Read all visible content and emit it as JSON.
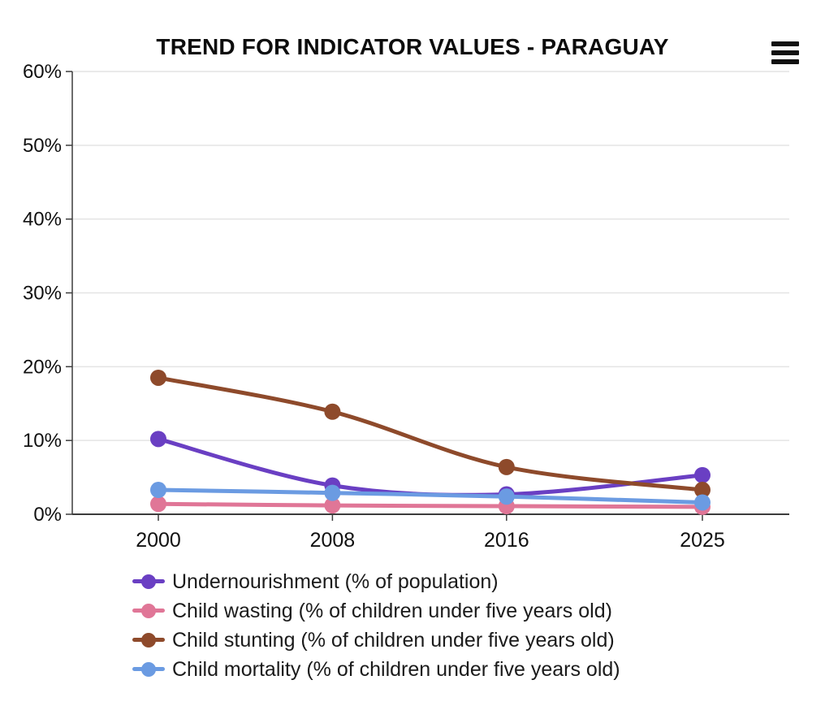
{
  "header": {
    "title": "TREND FOR INDICATOR VALUES - PARAGUAY"
  },
  "menu": {
    "icon": "hamburger-menu-icon"
  },
  "chart_data": {
    "type": "line",
    "line_style": "spline",
    "x": [
      2000,
      2008,
      2016,
      2025
    ],
    "x_tick_labels": [
      "2000",
      "2008",
      "2016",
      "2025"
    ],
    "ylim": [
      0,
      60
    ],
    "y_ticks": [
      0,
      10,
      20,
      30,
      40,
      50,
      60
    ],
    "y_tick_suffix": "%",
    "grid": true,
    "legend_position": "bottom-left",
    "series": [
      {
        "name": "Undernourishment (% of population)",
        "color": "#6a3fc3",
        "values": [
          10.2,
          3.9,
          2.7,
          5.3
        ]
      },
      {
        "name": "Child wasting (% of children under five years old)",
        "color": "#e07697",
        "values": [
          1.4,
          1.2,
          1.1,
          1.0
        ]
      },
      {
        "name": "Child stunting (% of children under five years old)",
        "color": "#8e4a2b",
        "values": [
          18.5,
          13.9,
          6.4,
          3.3
        ]
      },
      {
        "name": "Child mortality (% of children under five years old)",
        "color": "#6b9be2",
        "values": [
          3.3,
          2.9,
          2.4,
          1.6
        ]
      }
    ]
  }
}
